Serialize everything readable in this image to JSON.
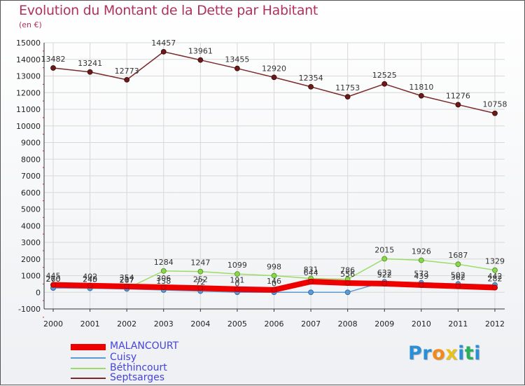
{
  "title": "Evolution du Montant de la Dette par Habitant",
  "unit": "(en €)",
  "brand": {
    "text": "Proxiti",
    "colors": [
      "#2a8fd6",
      "#2a8fd6",
      "#f08a1c",
      "#e8c21c",
      "#2a8fd6",
      "#2ab05a",
      "#2a8fd6"
    ]
  },
  "chart_data": {
    "type": "line",
    "title": "Evolution du Montant de la Dette par Habitant",
    "ylabel": "(en €)",
    "xlabel": "",
    "categories": [
      "2000",
      "2001",
      "2002",
      "2003",
      "2004",
      "2005",
      "2006",
      "2007",
      "2008",
      "2009",
      "2010",
      "2011",
      "2012"
    ],
    "ylim": [
      -1000,
      15000
    ],
    "yticks": [
      "-1000",
      "0",
      "1000",
      "2000",
      "3000",
      "4000",
      "5000",
      "6000",
      "7000",
      "8000",
      "9000",
      "10000",
      "11000",
      "12000",
      "13000",
      "14000",
      "15000"
    ],
    "legend_position": "bottom-left",
    "series": [
      {
        "name": "MALANCOURT",
        "color": "#ee0000",
        "values": [
          445,
          402,
          354,
          306,
          252,
          191,
          146,
          644,
          556,
          522,
          439,
          362,
          282
        ],
        "labels": [
          "445",
          "402",
          "354",
          "306",
          "252",
          "191",
          "146",
          "644",
          "556",
          "522",
          "439",
          "362",
          "282"
        ]
      },
      {
        "name": "Cuisy",
        "color": "#5b9bd5",
        "values": [
          260,
          240,
          207,
          138,
          72,
          0,
          0,
          0,
          0,
          632,
          573,
          502,
          442
        ],
        "labels": [
          "260",
          "240",
          "207",
          "138",
          "72",
          "0",
          "0",
          "",
          "",
          "632",
          "573",
          "502",
          "442"
        ]
      },
      {
        "name": "Béthincourt",
        "color": "#99dd66",
        "values": [
          270,
          245,
          217,
          1284,
          1247,
          1099,
          998,
          831,
          786,
          2015,
          1926,
          1687,
          1329
        ],
        "labels": [
          "270",
          "245",
          "217",
          "1284",
          "1247",
          "1099",
          "998",
          "831",
          "786",
          "2015",
          "1926",
          "1687",
          "1329"
        ]
      },
      {
        "name": "Septsarges",
        "color": "#7a2a2a",
        "values": [
          13482,
          13241,
          12773,
          14457,
          13961,
          13455,
          12920,
          12354,
          11753,
          12525,
          11810,
          11276,
          10758
        ],
        "labels": [
          "13482",
          "13241",
          "12773",
          "14457",
          "13961",
          "13455",
          "12920",
          "12354",
          "11753",
          "12525",
          "11810",
          "11276",
          "10758"
        ]
      }
    ]
  }
}
